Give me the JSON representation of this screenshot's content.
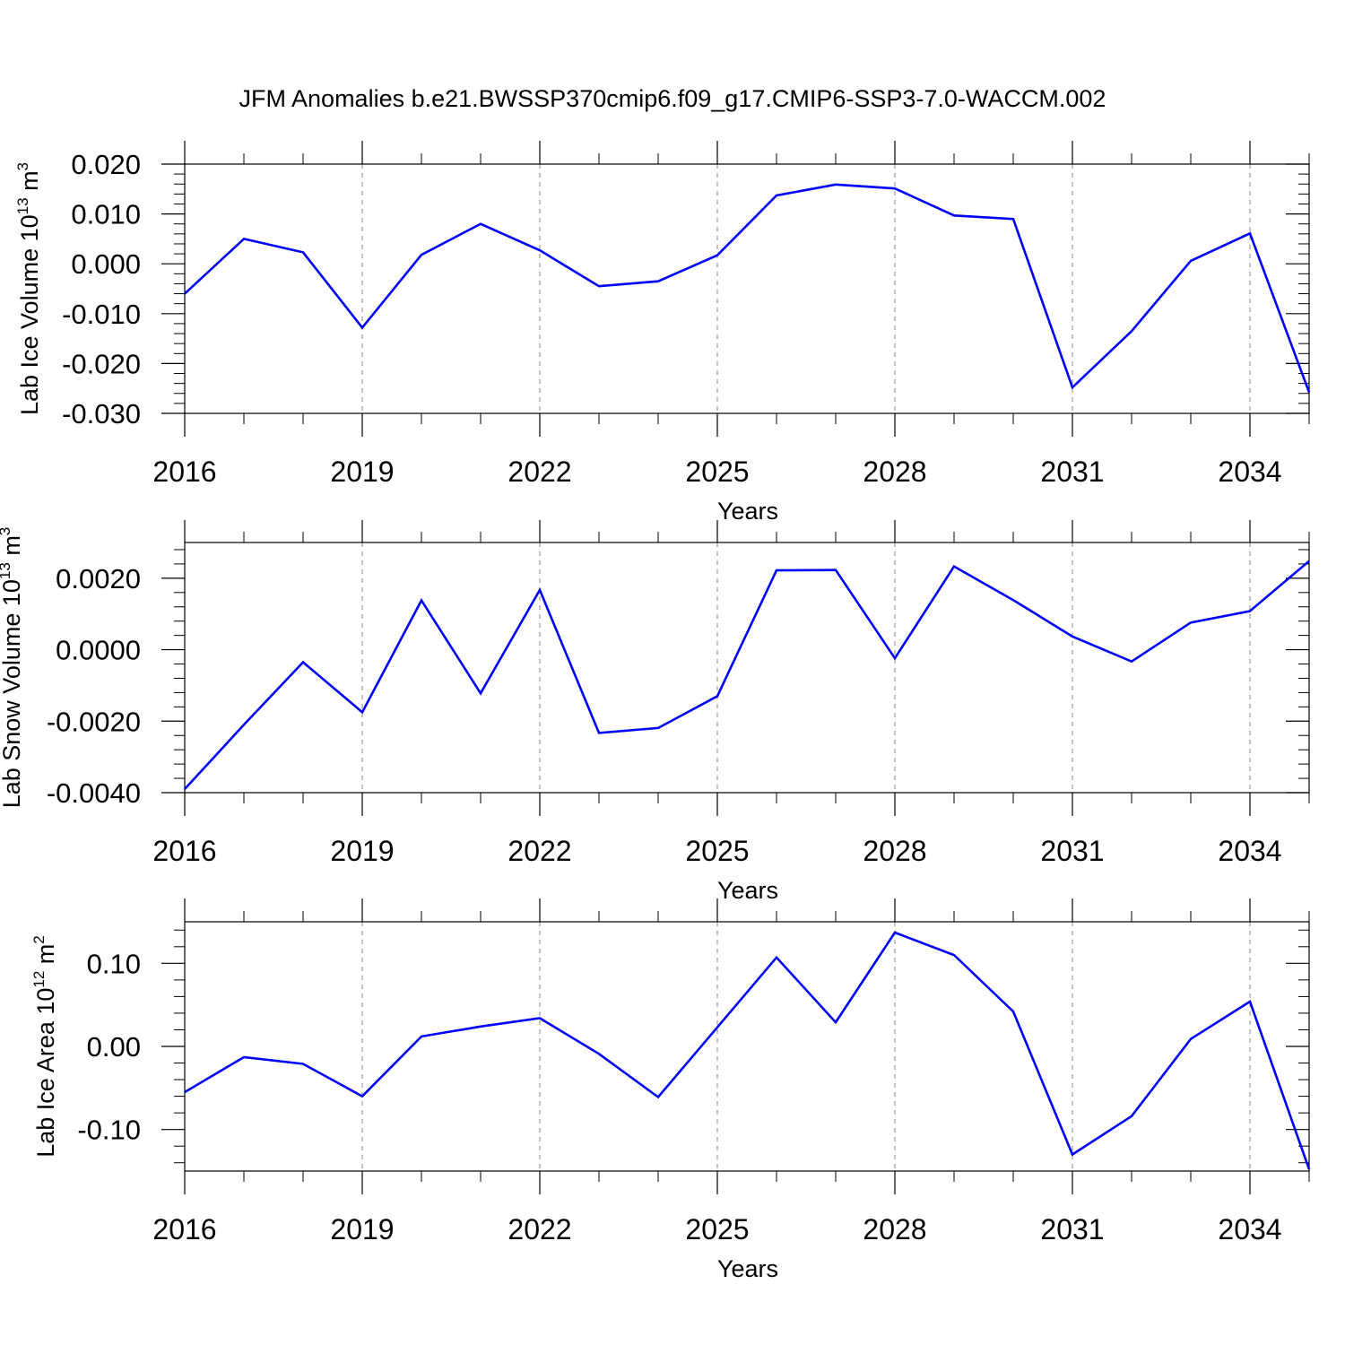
{
  "title": "JFM Anomalies b.e21.BWSSP370cmip6.f09_g17.CMIP6-SSP3-7.0-WACCM.002",
  "line_color": "#0000ff",
  "chart_data": [
    {
      "type": "line",
      "name": "ice-volume",
      "ylabel": "Lab Ice Volume 10",
      "ylabel_exp": "13",
      "ylabel_unit": " m",
      "ylabel_unit_exp": "3",
      "xlabel": "Years",
      "xlim": [
        2016,
        2035
      ],
      "ylim": [
        -0.03,
        0.02
      ],
      "x_ticks": [
        2016,
        2019,
        2022,
        2025,
        2028,
        2031,
        2034
      ],
      "x_tick_labels": [
        "2016",
        "2019",
        "2022",
        "2025",
        "2028",
        "2031",
        "2034"
      ],
      "y_ticks": [
        -0.03,
        -0.02,
        -0.01,
        0.0,
        0.01,
        0.02
      ],
      "y_tick_labels": [
        "-0.030",
        "-0.020",
        "-0.010",
        "0.000",
        "0.010",
        "0.020"
      ],
      "x": [
        2016,
        2017,
        2018,
        2019,
        2020,
        2021,
        2022,
        2023,
        2024,
        2025,
        2026,
        2027,
        2028,
        2029,
        2030,
        2031,
        2032,
        2033,
        2034,
        2035
      ],
      "values": [
        -0.006,
        0.005,
        0.0023,
        -0.0128,
        0.0018,
        0.008,
        0.0027,
        -0.0045,
        -0.0035,
        0.0017,
        0.0137,
        0.0159,
        0.0151,
        0.0097,
        0.009,
        -0.0248,
        -0.0135,
        0.0006,
        0.0061,
        -0.0258
      ]
    },
    {
      "type": "line",
      "name": "snow-volume",
      "ylabel": "Lab Snow Volume 10",
      "ylabel_exp": "13",
      "ylabel_unit": " m",
      "ylabel_unit_exp": "3",
      "xlabel": "Years",
      "xlim": [
        2016,
        2035
      ],
      "ylim": [
        -0.004,
        0.003
      ],
      "x_ticks": [
        2016,
        2019,
        2022,
        2025,
        2028,
        2031,
        2034
      ],
      "x_tick_labels": [
        "2016",
        "2019",
        "2022",
        "2025",
        "2028",
        "2031",
        "2034"
      ],
      "y_ticks": [
        -0.004,
        -0.002,
        0.0,
        0.002
      ],
      "y_tick_labels": [
        "-0.0040",
        "-0.0020",
        "0.0000",
        "0.0020"
      ],
      "x": [
        2016,
        2017,
        2018,
        2019,
        2020,
        2021,
        2022,
        2023,
        2024,
        2025,
        2026,
        2027,
        2028,
        2029,
        2030,
        2031,
        2032,
        2033,
        2034,
        2035
      ],
      "values": [
        -0.0039,
        -0.0021,
        -0.00035,
        -0.00175,
        0.00138,
        -0.00122,
        0.00167,
        -0.00233,
        -0.00219,
        -0.0013,
        0.00222,
        0.00223,
        -0.00024,
        0.00233,
        0.00139,
        0.00037,
        -0.00033,
        0.00076,
        0.00108,
        0.00248
      ]
    },
    {
      "type": "line",
      "name": "ice-area",
      "ylabel": "Lab Ice Area 10",
      "ylabel_exp": "12",
      "ylabel_unit": " m",
      "ylabel_unit_exp": "2",
      "xlabel": "Years",
      "xlim": [
        2016,
        2035
      ],
      "ylim": [
        -0.15,
        0.15
      ],
      "x_ticks": [
        2016,
        2019,
        2022,
        2025,
        2028,
        2031,
        2034
      ],
      "x_tick_labels": [
        "2016",
        "2019",
        "2022",
        "2025",
        "2028",
        "2031",
        "2034"
      ],
      "y_ticks": [
        -0.1,
        0.0,
        0.1
      ],
      "y_tick_labels": [
        "-0.10",
        "0.00",
        "0.10"
      ],
      "x": [
        2016,
        2017,
        2018,
        2019,
        2020,
        2021,
        2022,
        2023,
        2024,
        2025,
        2026,
        2027,
        2028,
        2029,
        2030,
        2031,
        2032,
        2033,
        2034,
        2035
      ],
      "values": [
        -0.055,
        -0.013,
        -0.021,
        -0.06,
        0.012,
        0.024,
        0.034,
        -0.009,
        -0.061,
        0.023,
        0.107,
        0.029,
        0.137,
        0.11,
        0.042,
        -0.13,
        -0.084,
        0.009,
        0.054,
        -0.148
      ]
    }
  ]
}
